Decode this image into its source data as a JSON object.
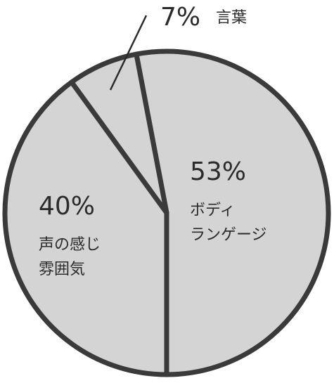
{
  "chart_data": {
    "type": "pie",
    "title": "",
    "categories": [
      "ボディランゲージ",
      "声の感じ雰囲気",
      "言葉"
    ],
    "values": [
      53,
      40,
      7
    ],
    "colors": {
      "slice_fill": "#d4d4d4",
      "outline": "#3a3a3a",
      "text": "#2b2b2b"
    },
    "slices": [
      {
        "percent_label": "53%",
        "name_lines": [
          "ボディ",
          "ランゲージ"
        ]
      },
      {
        "percent_label": "40%",
        "name_lines": [
          "声の感じ",
          "雰囲気"
        ]
      },
      {
        "percent_label": "7%",
        "name_lines": [
          "言葉"
        ]
      }
    ]
  }
}
